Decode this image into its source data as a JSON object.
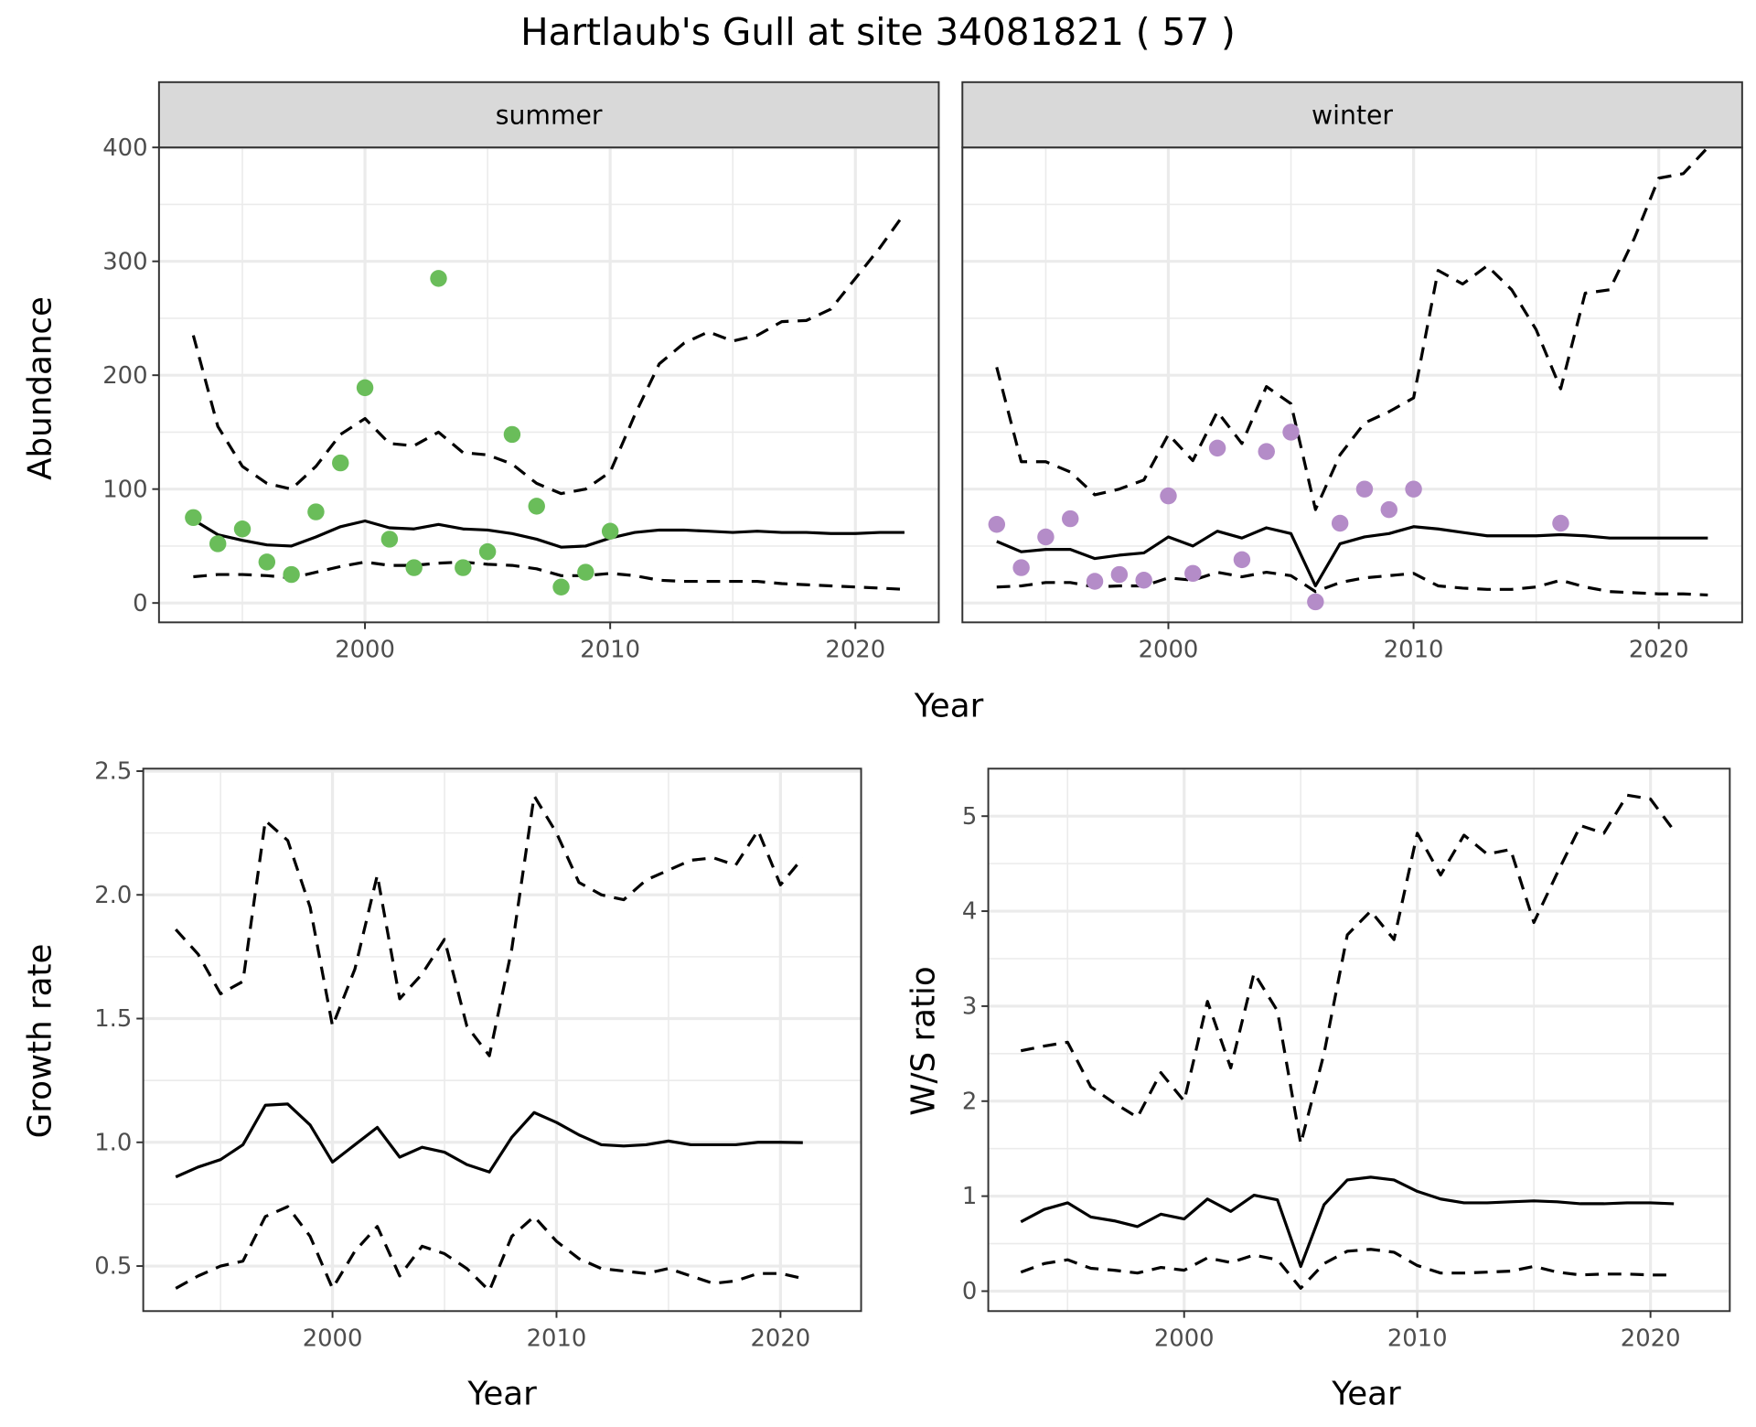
{
  "title": "Hartlaub's Gull at site 34081821 ( 57 )",
  "colors": {
    "summer": "#6abd5a",
    "winter": "#b48cc8",
    "line": "#000000",
    "grid": "#ebebeb",
    "strip": "#d9d9d9"
  },
  "chart_data": [
    {
      "type": "line",
      "panel": "summer",
      "strip_label": "summer",
      "xlabel": "Year",
      "ylabel": "Abundance",
      "xlim": [
        1991.6,
        2023.4
      ],
      "ylim": [
        -17,
        400
      ],
      "xticks": [
        "2000",
        "2010",
        "2020"
      ],
      "yticks": [
        "0",
        "100",
        "200",
        "300",
        "400"
      ],
      "x": [
        1993,
        1994,
        1995,
        1996,
        1997,
        1998,
        1999,
        2000,
        2001,
        2002,
        2003,
        2004,
        2005,
        2006,
        2007,
        2008,
        2009,
        2010,
        2011,
        2012,
        2013,
        2014,
        2015,
        2016,
        2017,
        2018,
        2019,
        2020,
        2021,
        2022
      ],
      "series": [
        {
          "name": "mean",
          "style": "solid",
          "values": [
            73,
            60,
            55,
            51,
            50,
            58,
            67,
            72,
            66,
            65,
            69,
            65,
            64,
            61,
            56,
            49,
            50,
            57,
            62,
            64,
            64,
            63,
            62,
            63,
            62,
            62,
            61,
            61,
            62,
            62
          ]
        },
        {
          "name": "upper",
          "style": "dashed",
          "values": [
            235,
            155,
            120,
            105,
            100,
            120,
            148,
            162,
            140,
            138,
            150,
            132,
            130,
            122,
            105,
            96,
            100,
            115,
            165,
            210,
            228,
            238,
            230,
            235,
            247,
            248,
            258,
            285,
            312,
            342
          ]
        },
        {
          "name": "lower",
          "style": "dashed",
          "values": [
            23,
            25,
            25,
            24,
            22,
            27,
            32,
            36,
            33,
            33,
            35,
            36,
            34,
            33,
            30,
            24,
            24,
            26,
            24,
            20,
            19,
            19,
            19,
            19,
            17,
            16,
            15,
            14,
            13,
            12
          ]
        }
      ],
      "points": {
        "x": [
          1993,
          1994,
          1995,
          1996,
          1997,
          1998,
          1999,
          2000,
          2001,
          2002,
          2003,
          2004,
          2005,
          2006,
          2007,
          2008,
          2009,
          2010
        ],
        "y": [
          75,
          52,
          65,
          36,
          25,
          80,
          123,
          189,
          56,
          31,
          285,
          31,
          45,
          148,
          85,
          14,
          27,
          63
        ]
      }
    },
    {
      "type": "line",
      "panel": "winter",
      "strip_label": "winter",
      "xlabel": "Year",
      "ylabel": "Abundance",
      "xlim": [
        1991.6,
        2023.4
      ],
      "ylim": [
        -17,
        400
      ],
      "xticks": [
        "2000",
        "2010",
        "2020"
      ],
      "yticks": [],
      "x": [
        1993,
        1994,
        1995,
        1996,
        1997,
        1998,
        1999,
        2000,
        2001,
        2002,
        2003,
        2004,
        2005,
        2006,
        2007,
        2008,
        2009,
        2010,
        2011,
        2012,
        2013,
        2014,
        2015,
        2016,
        2017,
        2018,
        2019,
        2020,
        2021,
        2022
      ],
      "series": [
        {
          "name": "mean",
          "style": "solid",
          "values": [
            54,
            45,
            47,
            47,
            39,
            42,
            44,
            58,
            50,
            63,
            57,
            66,
            61,
            15,
            52,
            58,
            61,
            67,
            65,
            62,
            59,
            59,
            59,
            60,
            59,
            57,
            57,
            57,
            57,
            57
          ]
        },
        {
          "name": "upper",
          "style": "dashed",
          "values": [
            207,
            124,
            124,
            115,
            95,
            100,
            108,
            148,
            125,
            168,
            140,
            190,
            175,
            82,
            130,
            158,
            168,
            180,
            292,
            280,
            296,
            275,
            240,
            188,
            272,
            275,
            320,
            373,
            377,
            400
          ]
        },
        {
          "name": "lower",
          "style": "dashed",
          "values": [
            14,
            15,
            18,
            18,
            14,
            15,
            15,
            22,
            20,
            27,
            23,
            27,
            24,
            10,
            18,
            22,
            24,
            26,
            15,
            13,
            12,
            12,
            14,
            20,
            14,
            10,
            9,
            8,
            8,
            7
          ]
        }
      ],
      "points": {
        "x": [
          1993,
          1994,
          1995,
          1996,
          1997,
          1998,
          1999,
          2000,
          2001,
          2002,
          2003,
          2004,
          2005,
          2006,
          2007,
          2008,
          2009,
          2010,
          2016
        ],
        "y": [
          69,
          31,
          58,
          74,
          19,
          25,
          20,
          94,
          26,
          136,
          38,
          133,
          150,
          1,
          70,
          100,
          82,
          100,
          70
        ]
      }
    },
    {
      "type": "line",
      "panel": "growth",
      "xlabel": "Year",
      "ylabel": "Growth rate",
      "xlim": [
        1991.55,
        2023.6
      ],
      "ylim": [
        0.318,
        2.51
      ],
      "xticks": [
        "2000",
        "2010",
        "2020"
      ],
      "yticks": [
        "0.5",
        "1.0",
        "1.5",
        "2.0",
        "2.5"
      ],
      "x": [
        1993,
        1994,
        1995,
        1996,
        1997,
        1998,
        1999,
        2000,
        2001,
        2002,
        2003,
        2004,
        2005,
        2006,
        2007,
        2008,
        2009,
        2010,
        2011,
        2012,
        2013,
        2014,
        2015,
        2016,
        2017,
        2018,
        2019,
        2020,
        2021
      ],
      "series": [
        {
          "name": "mean",
          "style": "solid",
          "values": [
            0.86,
            0.9,
            0.93,
            0.99,
            1.15,
            1.155,
            1.07,
            0.92,
            0.99,
            1.06,
            0.94,
            0.98,
            0.96,
            0.91,
            0.88,
            1.02,
            1.12,
            1.08,
            1.03,
            0.99,
            0.985,
            0.99,
            1.005,
            0.99,
            0.99,
            0.99,
            1.0,
            1.0,
            0.999
          ]
        },
        {
          "name": "upper",
          "style": "dashed",
          "values": [
            1.86,
            1.76,
            1.6,
            1.65,
            2.3,
            2.22,
            1.95,
            1.47,
            1.7,
            2.08,
            1.58,
            1.68,
            1.82,
            1.47,
            1.35,
            1.78,
            2.4,
            2.25,
            2.05,
            2.0,
            1.98,
            2.06,
            2.1,
            2.14,
            2.15,
            2.12,
            2.26,
            2.04,
            2.15
          ]
        },
        {
          "name": "lower",
          "style": "dashed",
          "values": [
            0.41,
            0.46,
            0.5,
            0.52,
            0.7,
            0.74,
            0.62,
            0.41,
            0.56,
            0.66,
            0.46,
            0.58,
            0.55,
            0.49,
            0.4,
            0.62,
            0.7,
            0.6,
            0.53,
            0.49,
            0.48,
            0.47,
            0.49,
            0.46,
            0.43,
            0.44,
            0.47,
            0.47,
            0.45
          ]
        }
      ]
    },
    {
      "type": "line",
      "panel": "ratio",
      "xlabel": "Year",
      "ylabel": "W/S ratio",
      "xlim": [
        1991.6,
        2023.4
      ],
      "ylim": [
        -0.21,
        5.5
      ],
      "xticks": [
        "2000",
        "2010",
        "2020"
      ],
      "yticks": [
        "0",
        "1",
        "2",
        "3",
        "4",
        "5"
      ],
      "x": [
        1993,
        1994,
        1995,
        1996,
        1997,
        1998,
        1999,
        2000,
        2001,
        2002,
        2003,
        2004,
        2005,
        2006,
        2007,
        2008,
        2009,
        2010,
        2011,
        2012,
        2013,
        2014,
        2015,
        2016,
        2017,
        2018,
        2019,
        2020,
        2021
      ],
      "series": [
        {
          "name": "mean",
          "style": "solid",
          "values": [
            0.73,
            0.86,
            0.93,
            0.78,
            0.74,
            0.68,
            0.81,
            0.76,
            0.97,
            0.84,
            1.01,
            0.96,
            0.26,
            0.91,
            1.17,
            1.2,
            1.17,
            1.05,
            0.97,
            0.93,
            0.93,
            0.94,
            0.95,
            0.94,
            0.92,
            0.92,
            0.93,
            0.93,
            0.92
          ]
        },
        {
          "name": "upper",
          "style": "dashed",
          "values": [
            2.53,
            2.58,
            2.62,
            2.15,
            1.98,
            1.83,
            2.3,
            2.0,
            3.05,
            2.35,
            3.35,
            2.95,
            1.55,
            2.5,
            3.75,
            4.0,
            3.7,
            4.82,
            4.38,
            4.8,
            4.6,
            4.65,
            3.88,
            4.4,
            4.9,
            4.82,
            5.22,
            5.18,
            4.85
          ]
        },
        {
          "name": "lower",
          "style": "dashed",
          "values": [
            0.2,
            0.29,
            0.33,
            0.24,
            0.22,
            0.19,
            0.25,
            0.22,
            0.35,
            0.3,
            0.38,
            0.33,
            0.03,
            0.29,
            0.42,
            0.44,
            0.41,
            0.27,
            0.19,
            0.19,
            0.2,
            0.21,
            0.26,
            0.2,
            0.17,
            0.18,
            0.18,
            0.17,
            0.17
          ]
        }
      ]
    }
  ]
}
